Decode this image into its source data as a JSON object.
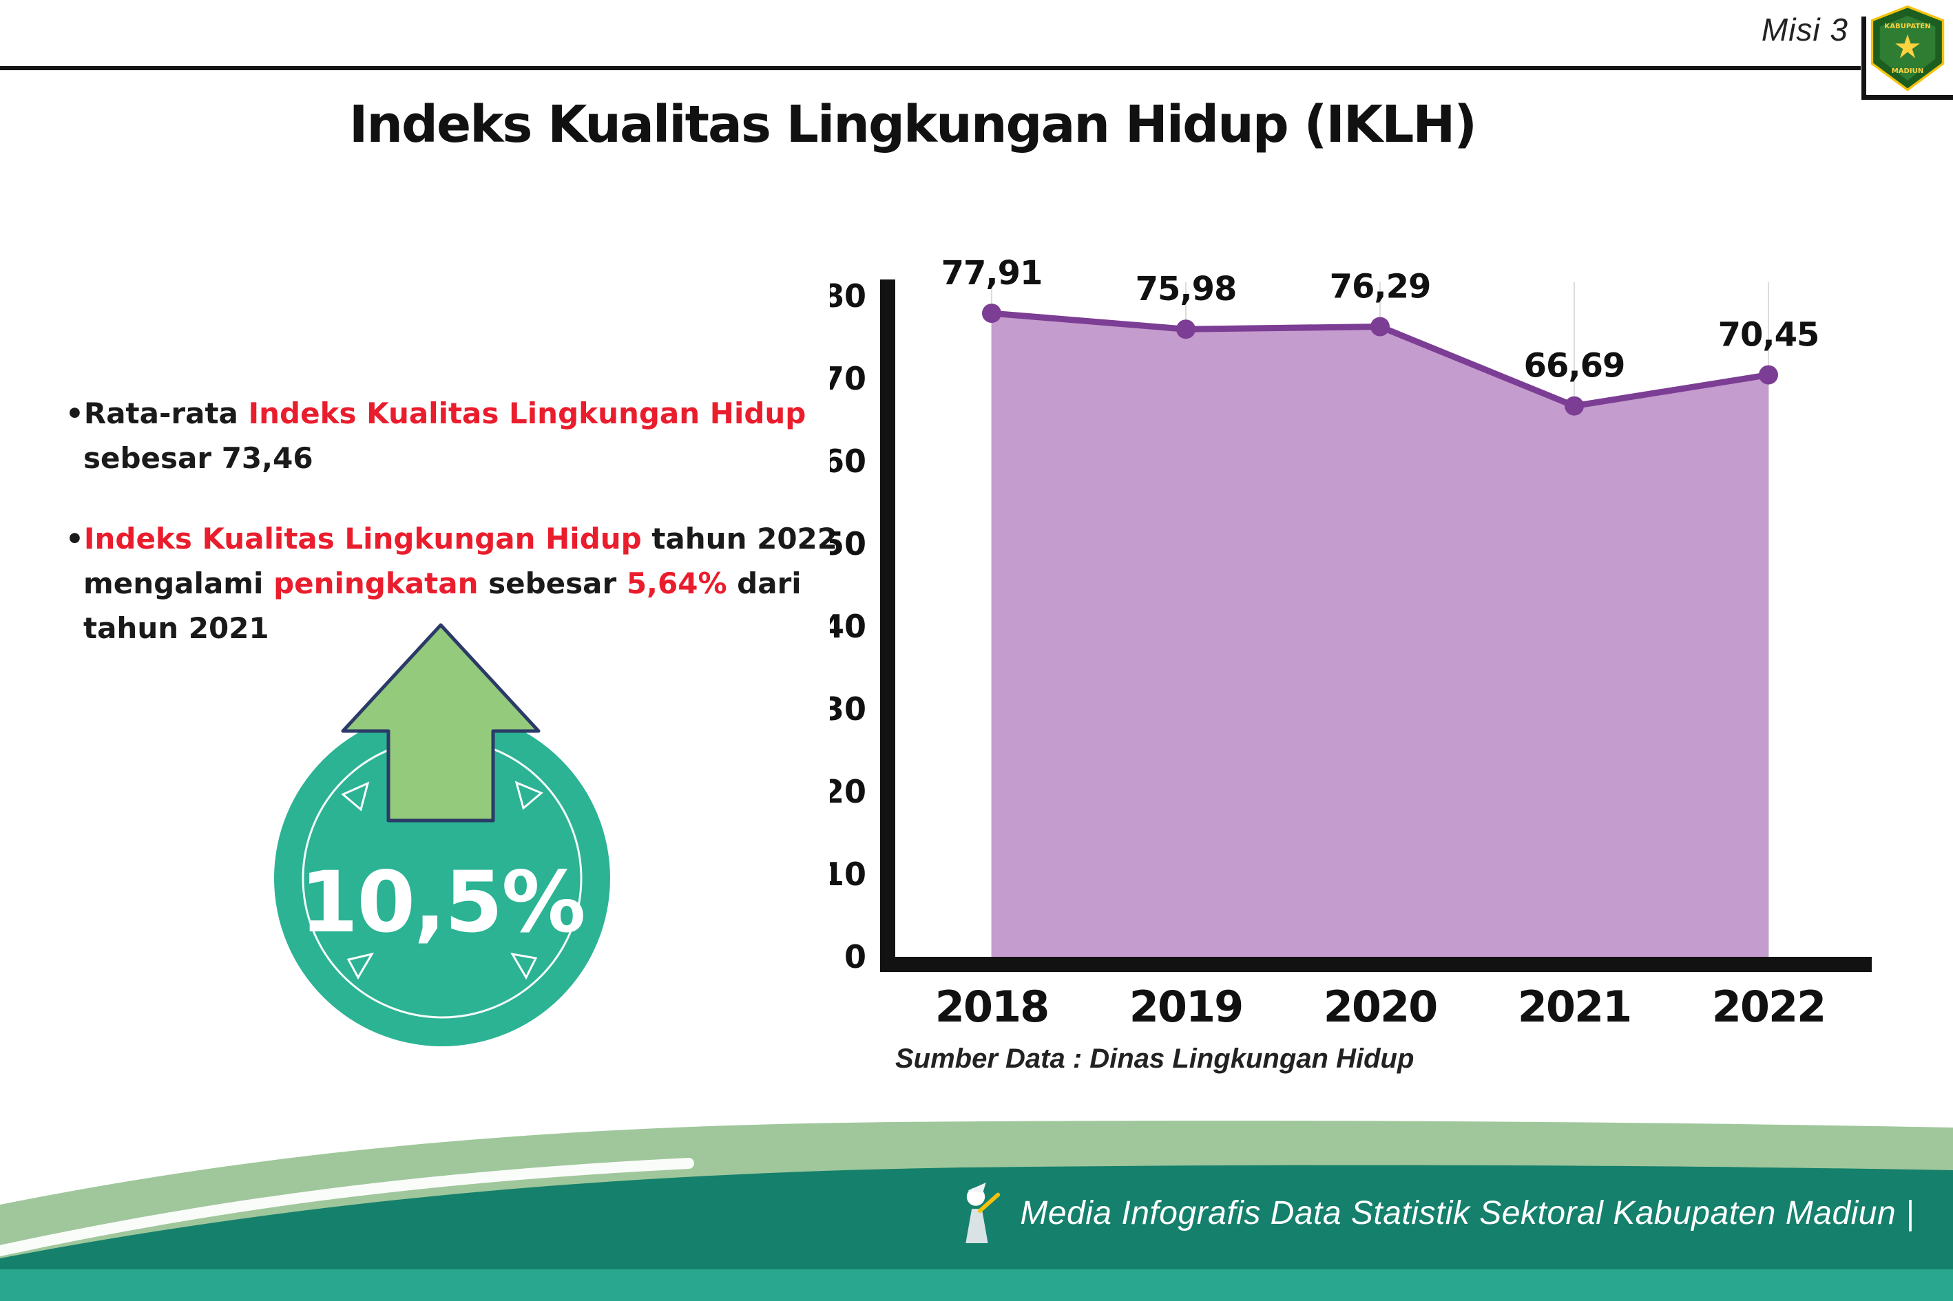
{
  "colors": {
    "ink": "#1a1a1a",
    "red": "#ea1d2d",
    "teal": "#2bb394",
    "arrow-green": "#94ca7c",
    "arrow-outline": "#2b3a67",
    "footer-sage": "#9fc79b",
    "footer-dark": "#15806c",
    "footer-bar": "#2aa78f"
  },
  "header": {
    "misi_label": "Misi 3",
    "title": "Indeks Kualitas Lingkungan Hidup (IKLH)",
    "logo": {
      "name": "Kabupaten Madiun",
      "top_text": "KABUPATEN",
      "bottom_text": "MADIUN"
    }
  },
  "bullets": [
    {
      "runs": [
        {
          "text": "Rata-rata ",
          "style": "ink"
        },
        {
          "text": "Indeks Kualitas Lingkungan Hidup",
          "style": "red"
        },
        {
          "text": " sebesar 73,46",
          "style": "ink"
        }
      ]
    },
    {
      "runs": [
        {
          "text": "Indeks Kualitas Lingkungan Hidup",
          "style": "red"
        },
        {
          "text": " tahun 2022 mengalami ",
          "style": "ink"
        },
        {
          "text": "peningkatan",
          "style": "red"
        },
        {
          "text": " sebesar ",
          "style": "ink"
        },
        {
          "text": "5,64%",
          "style": "red"
        },
        {
          "text": " dari tahun 2021",
          "style": "ink"
        }
      ]
    }
  ],
  "badge": {
    "value": "10,5%"
  },
  "chart_data": {
    "type": "area",
    "categories": [
      "2018",
      "2019",
      "2020",
      "2021",
      "2022"
    ],
    "values": [
      77.91,
      75.98,
      76.29,
      66.69,
      70.45
    ],
    "value_labels": [
      "77,91",
      "75,98",
      "76,29",
      "66,69",
      "70,45"
    ],
    "ylim": [
      0,
      80
    ],
    "ytick_step": 10,
    "title": "",
    "xlabel": "",
    "ylabel": "",
    "line_color": "#7c3d94",
    "fill_color": "#c49ccd",
    "grid": "light vertical gridlines",
    "legend": "none",
    "source": "Sumber Data : Dinas Lingkungan Hidup"
  },
  "footer": {
    "credit": "Media Infografis Data Statistik Sektoral Kabupaten Madiun |"
  }
}
